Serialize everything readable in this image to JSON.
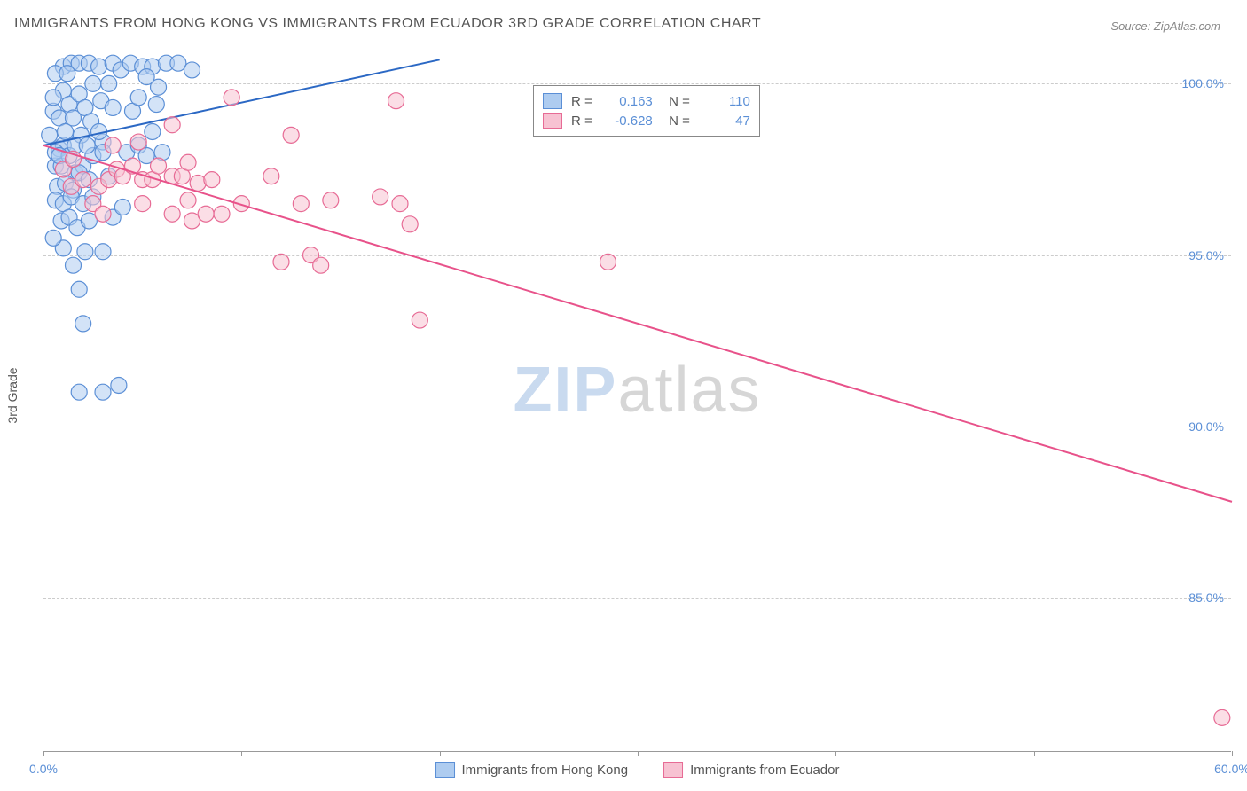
{
  "title": "IMMIGRANTS FROM HONG KONG VS IMMIGRANTS FROM ECUADOR 3RD GRADE CORRELATION CHART",
  "source": "Source: ZipAtlas.com",
  "ylabel": "3rd Grade",
  "watermark": {
    "part1": "ZIP",
    "part2": "atlas"
  },
  "chart": {
    "type": "scatter",
    "xlim": [
      0,
      60
    ],
    "ylim": [
      80.5,
      101.2
    ],
    "x_ticks": [
      0,
      10,
      20,
      30,
      40,
      50,
      60
    ],
    "x_tick_labels": {
      "0": "0.0%",
      "60": "60.0%"
    },
    "y_grid": [
      85,
      90,
      95,
      100
    ],
    "y_tick_labels": {
      "85": "85.0%",
      "90": "90.0%",
      "95": "95.0%",
      "100": "100.0%"
    },
    "background_color": "#ffffff",
    "grid_color": "#cccccc",
    "axis_color": "#999999",
    "tick_label_color": "#5b8fd6",
    "marker_radius": 9,
    "marker_stroke_width": 1.2,
    "line_width": 2,
    "series": [
      {
        "name": "Immigrants from Hong Kong",
        "fill": "#aeccf0",
        "stroke": "#5b8fd6",
        "fill_opacity": 0.55,
        "line_color": "#2b68c4",
        "r": 0.163,
        "n": 110,
        "trend": {
          "x1": 0,
          "y1": 98.2,
          "x2": 20,
          "y2": 100.7
        },
        "points": [
          [
            0.3,
            98.5
          ],
          [
            0.5,
            99.2
          ],
          [
            0.8,
            98.1
          ],
          [
            0.6,
            97.6
          ],
          [
            1.0,
            100.5
          ],
          [
            1.4,
            100.6
          ],
          [
            1.8,
            100.6
          ],
          [
            2.3,
            100.6
          ],
          [
            2.8,
            100.5
          ],
          [
            3.5,
            100.6
          ],
          [
            3.9,
            100.4
          ],
          [
            4.4,
            100.6
          ],
          [
            5.0,
            100.5
          ],
          [
            5.5,
            100.5
          ],
          [
            6.2,
            100.6
          ],
          [
            6.8,
            100.6
          ],
          [
            7.5,
            100.4
          ],
          [
            1.0,
            99.8
          ],
          [
            1.3,
            99.4
          ],
          [
            1.8,
            99.7
          ],
          [
            2.1,
            99.3
          ],
          [
            2.5,
            100.0
          ],
          [
            2.9,
            99.5
          ],
          [
            3.3,
            100.0
          ],
          [
            3.0,
            98.3
          ],
          [
            3.5,
            99.3
          ],
          [
            0.8,
            99.0
          ],
          [
            0.5,
            99.6
          ],
          [
            0.6,
            100.3
          ],
          [
            1.2,
            100.3
          ],
          [
            1.5,
            99.0
          ],
          [
            1.9,
            98.5
          ],
          [
            2.4,
            98.9
          ],
          [
            1.0,
            98.2
          ],
          [
            0.6,
            98.0
          ],
          [
            0.9,
            97.6
          ],
          [
            1.3,
            97.9
          ],
          [
            1.6,
            97.4
          ],
          [
            2.0,
            97.6
          ],
          [
            2.5,
            97.9
          ],
          [
            3.0,
            98.0
          ],
          [
            0.7,
            97.0
          ],
          [
            1.1,
            97.1
          ],
          [
            1.5,
            96.9
          ],
          [
            1.8,
            97.4
          ],
          [
            2.3,
            97.2
          ],
          [
            3.3,
            97.3
          ],
          [
            0.6,
            96.6
          ],
          [
            1.0,
            96.5
          ],
          [
            1.4,
            96.7
          ],
          [
            2.0,
            96.5
          ],
          [
            2.5,
            96.7
          ],
          [
            3.5,
            96.1
          ],
          [
            4.0,
            96.4
          ],
          [
            0.9,
            96.0
          ],
          [
            1.3,
            96.1
          ],
          [
            1.7,
            95.8
          ],
          [
            2.3,
            96.0
          ],
          [
            3.0,
            95.1
          ],
          [
            2.1,
            95.1
          ],
          [
            1.5,
            94.7
          ],
          [
            1.0,
            95.2
          ],
          [
            0.5,
            95.5
          ],
          [
            1.8,
            94.0
          ],
          [
            2.0,
            93.0
          ],
          [
            3.0,
            91.0
          ],
          [
            3.8,
            91.2
          ],
          [
            1.8,
            91.0
          ],
          [
            0.8,
            97.9
          ],
          [
            1.1,
            98.6
          ],
          [
            1.6,
            98.2
          ],
          [
            2.2,
            98.2
          ],
          [
            2.8,
            98.6
          ],
          [
            4.2,
            98.0
          ],
          [
            4.8,
            98.2
          ],
          [
            5.2,
            97.9
          ],
          [
            6.0,
            98.0
          ],
          [
            5.5,
            98.6
          ],
          [
            4.5,
            99.2
          ],
          [
            4.8,
            99.6
          ],
          [
            5.7,
            99.4
          ],
          [
            5.8,
            99.9
          ],
          [
            5.2,
            100.2
          ]
        ]
      },
      {
        "name": "Immigrants from Ecuador",
        "fill": "#f7c2d2",
        "stroke": "#e76b95",
        "fill_opacity": 0.55,
        "line_color": "#e8528a",
        "r": -0.628,
        "n": 47,
        "trend": {
          "x1": 0,
          "y1": 98.2,
          "x2": 60,
          "y2": 87.8
        },
        "points": [
          [
            1.0,
            97.5
          ],
          [
            1.5,
            97.8
          ],
          [
            1.4,
            97.0
          ],
          [
            2.0,
            97.2
          ],
          [
            2.8,
            97.0
          ],
          [
            3.3,
            97.2
          ],
          [
            3.7,
            97.5
          ],
          [
            4.0,
            97.3
          ],
          [
            4.5,
            97.6
          ],
          [
            5.0,
            97.2
          ],
          [
            5.5,
            97.2
          ],
          [
            5.8,
            97.6
          ],
          [
            6.5,
            97.3
          ],
          [
            7.0,
            97.3
          ],
          [
            7.3,
            97.7
          ],
          [
            7.8,
            97.1
          ],
          [
            8.5,
            97.2
          ],
          [
            2.5,
            96.5
          ],
          [
            3.0,
            96.2
          ],
          [
            5.0,
            96.5
          ],
          [
            6.5,
            96.2
          ],
          [
            7.3,
            96.6
          ],
          [
            7.5,
            96.0
          ],
          [
            8.2,
            96.2
          ],
          [
            9.0,
            96.2
          ],
          [
            10.0,
            96.5
          ],
          [
            11.5,
            97.3
          ],
          [
            12.5,
            98.5
          ],
          [
            13.0,
            96.5
          ],
          [
            14.5,
            96.6
          ],
          [
            13.5,
            95.0
          ],
          [
            14.0,
            94.7
          ],
          [
            12.0,
            94.8
          ],
          [
            17.0,
            96.7
          ],
          [
            17.8,
            99.5
          ],
          [
            18.0,
            96.5
          ],
          [
            18.5,
            95.9
          ],
          [
            19.0,
            93.1
          ],
          [
            28.5,
            94.8
          ],
          [
            9.5,
            99.6
          ],
          [
            6.5,
            98.8
          ],
          [
            3.5,
            98.2
          ],
          [
            4.8,
            98.3
          ],
          [
            59.5,
            81.5
          ]
        ]
      }
    ],
    "bottom_legend": [
      {
        "label": "Immigrants from Hong Kong",
        "fill": "#aeccf0",
        "stroke": "#5b8fd6"
      },
      {
        "label": "Immigrants from Ecuador",
        "fill": "#f7c2d2",
        "stroke": "#e76b95"
      }
    ]
  }
}
